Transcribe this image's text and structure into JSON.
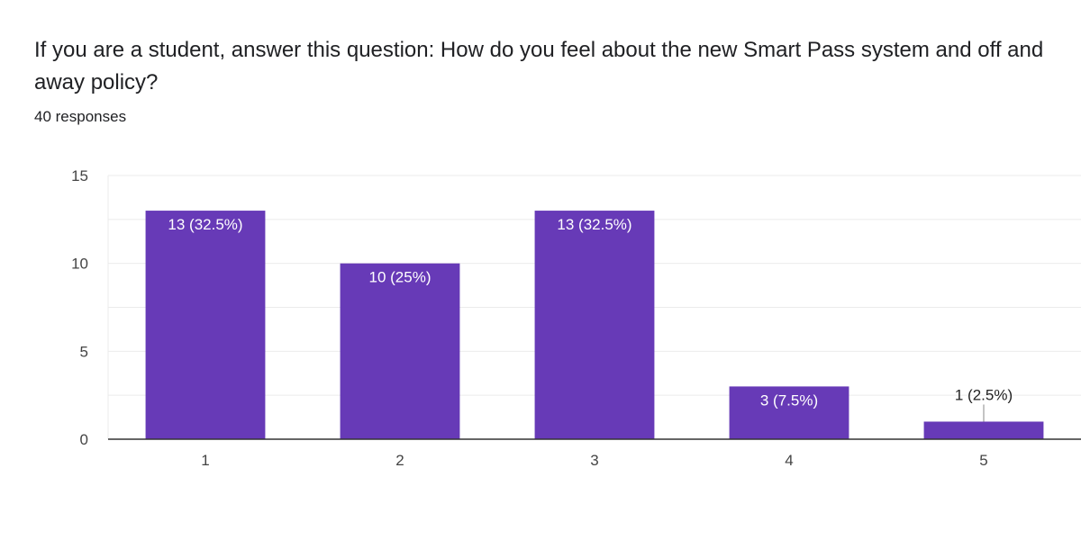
{
  "question": "If you are a student, answer this question: How do you feel about the new Smart Pass system and off and away policy?",
  "response_count": "40 responses",
  "colors": {
    "bar": "#673ab7",
    "gridline": "#ebebeb",
    "axis": "#333333",
    "label_inside": "#ffffff",
    "label_outside": "#222222"
  },
  "chart_data": {
    "type": "bar",
    "categories": [
      "1",
      "2",
      "3",
      "4",
      "5"
    ],
    "values": [
      13,
      10,
      13,
      3,
      1
    ],
    "data_labels": [
      "13 (32.5%)",
      "10 (25%)",
      "13 (32.5%)",
      "3 (7.5%)",
      "1 (2.5%)"
    ],
    "ylim": [
      0,
      15
    ],
    "yticks": [
      0,
      5,
      10,
      15
    ],
    "ytick_labels": [
      "0",
      "5",
      "10",
      "15"
    ],
    "grid": true,
    "legend": "none"
  }
}
